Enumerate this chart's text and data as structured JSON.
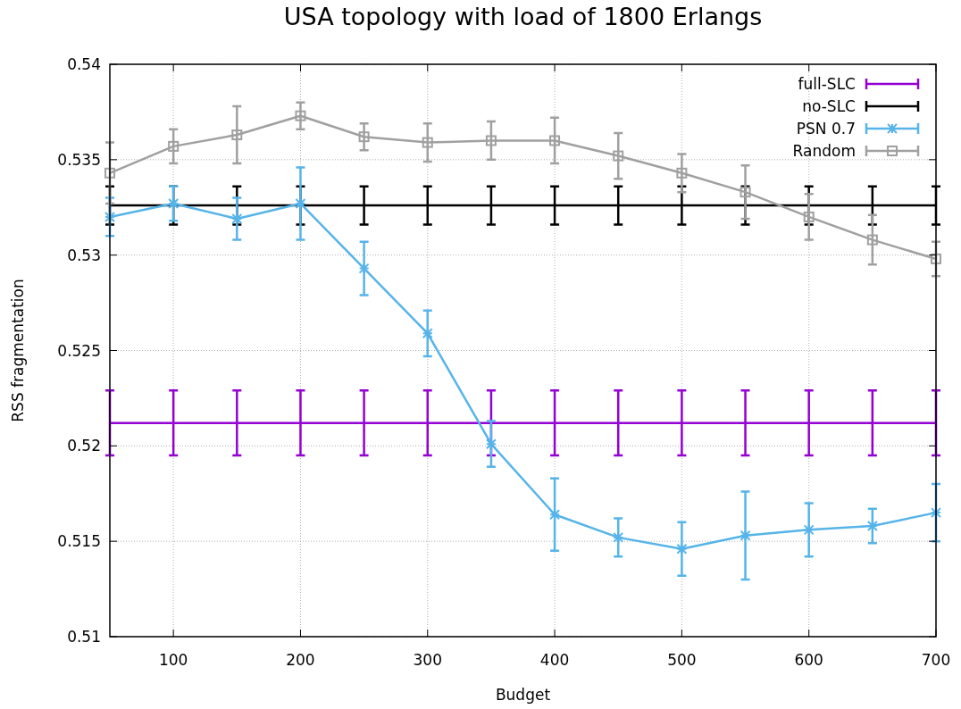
{
  "chart_data": {
    "type": "line",
    "title": "USA topology with load of 1800 Erlangs",
    "xlabel": "Budget",
    "ylabel": "RSS fragmentation",
    "x": [
      50,
      100,
      150,
      200,
      250,
      300,
      350,
      400,
      450,
      500,
      550,
      600,
      650,
      700
    ],
    "series": [
      {
        "name": "full-SLC",
        "color": "#9400d3",
        "marker": "none",
        "values": [
          0.5212,
          0.5212,
          0.5212,
          0.5212,
          0.5212,
          0.5212,
          0.5212,
          0.5212,
          0.5212,
          0.5212,
          0.5212,
          0.5212,
          0.5212,
          0.5212
        ],
        "errors": [
          0.0017,
          0.0017,
          0.0017,
          0.0017,
          0.0017,
          0.0017,
          0.0017,
          0.0017,
          0.0017,
          0.0017,
          0.0017,
          0.0017,
          0.0017,
          0.0017
        ]
      },
      {
        "name": "no-SLC",
        "color": "#000000",
        "marker": "none",
        "values": [
          0.5326,
          0.5326,
          0.5326,
          0.5326,
          0.5326,
          0.5326,
          0.5326,
          0.5326,
          0.5326,
          0.5326,
          0.5326,
          0.5326,
          0.5326,
          0.5326
        ],
        "errors": [
          0.001,
          0.001,
          0.001,
          0.001,
          0.001,
          0.001,
          0.001,
          0.001,
          0.001,
          0.001,
          0.001,
          0.001,
          0.001,
          0.001
        ]
      },
      {
        "name": "PSN 0.7",
        "color": "#56b4e9",
        "marker": "cross",
        "values": [
          0.532,
          0.5327,
          0.5319,
          0.5327,
          0.5293,
          0.5259,
          0.5201,
          0.5164,
          0.5152,
          0.5146,
          0.5153,
          0.5156,
          0.5158,
          0.5165
        ],
        "errors": [
          0.001,
          0.0009,
          0.0011,
          0.0019,
          0.0014,
          0.0012,
          0.0012,
          0.0019,
          0.001,
          0.0014,
          0.0023,
          0.0014,
          0.0009,
          0.0015
        ]
      },
      {
        "name": "Random",
        "color": "#a0a0a0",
        "marker": "square",
        "values": [
          0.5343,
          0.5357,
          0.5363,
          0.5373,
          0.5362,
          0.5359,
          0.536,
          0.536,
          0.5352,
          0.5343,
          0.5333,
          0.532,
          0.5308,
          0.5298
        ],
        "errors": [
          0.0016,
          0.0009,
          0.0015,
          0.0007,
          0.0007,
          0.001,
          0.001,
          0.0012,
          0.0012,
          0.001,
          0.0014,
          0.0012,
          0.0013,
          0.0009
        ]
      }
    ],
    "xlim": [
      50,
      700
    ],
    "xticks": [
      100,
      200,
      300,
      400,
      500,
      600,
      700
    ],
    "ylim": [
      0.51,
      0.54
    ],
    "yticks": [
      0.51,
      0.515,
      0.52,
      0.525,
      0.53,
      0.535,
      0.54
    ],
    "grid": true,
    "legend": "top right"
  }
}
